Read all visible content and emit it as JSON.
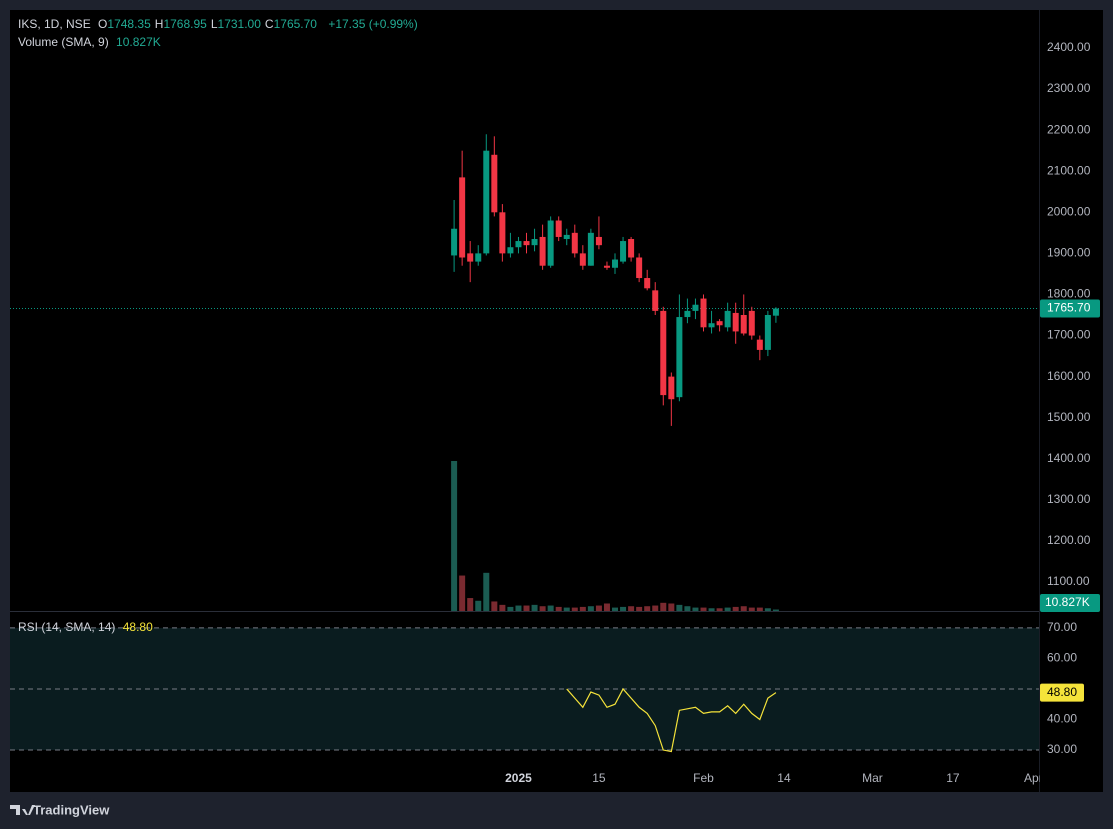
{
  "chart_data": {
    "type": "candlestick",
    "symbol": "IKS, 1D, NSE",
    "ohlc_legend": [
      {
        "label": "O",
        "value": "1748.35"
      },
      {
        "label": "H",
        "value": "1768.95"
      },
      {
        "label": "L",
        "value": "1731.00"
      },
      {
        "label": "C",
        "value": "1765.70"
      }
    ],
    "change": "+17.35 (+0.99%)",
    "colors": {
      "up": "#089981",
      "down": "#f23645",
      "volume_up": "#1b5c52",
      "volume_down": "#7a2a30"
    },
    "candles": [
      [
        1895,
        2030,
        1855,
        1960
      ],
      [
        2085,
        2150,
        1870,
        1890
      ],
      [
        1900,
        1930,
        1830,
        1880
      ],
      [
        1880,
        1920,
        1870,
        1900
      ],
      [
        1900,
        2190,
        1895,
        2150
      ],
      [
        2140,
        2185,
        1990,
        2000
      ],
      [
        2000,
        2020,
        1880,
        1900
      ],
      [
        1900,
        1950,
        1890,
        1915
      ],
      [
        1915,
        1940,
        1900,
        1930
      ],
      [
        1930,
        1950,
        1900,
        1920
      ],
      [
        1920,
        1960,
        1905,
        1935
      ],
      [
        1940,
        1970,
        1860,
        1870
      ],
      [
        1870,
        1990,
        1865,
        1980
      ],
      [
        1980,
        1990,
        1930,
        1940
      ],
      [
        1935,
        1960,
        1920,
        1945
      ],
      [
        1950,
        1970,
        1890,
        1900
      ],
      [
        1900,
        1920,
        1860,
        1870
      ],
      [
        1870,
        1960,
        1870,
        1950
      ],
      [
        1940,
        1990,
        1910,
        1920
      ],
      [
        1870,
        1880,
        1860,
        1865
      ],
      [
        1865,
        1900,
        1850,
        1885
      ],
      [
        1880,
        1940,
        1875,
        1930
      ],
      [
        1935,
        1940,
        1880,
        1890
      ],
      [
        1890,
        1900,
        1830,
        1840
      ],
      [
        1840,
        1860,
        1810,
        1815
      ],
      [
        1810,
        1830,
        1750,
        1760
      ],
      [
        1760,
        1770,
        1530,
        1555
      ],
      [
        1600,
        1610,
        1480,
        1545
      ],
      [
        1550,
        1800,
        1540,
        1745
      ],
      [
        1745,
        1790,
        1730,
        1760
      ],
      [
        1760,
        1790,
        1740,
        1775
      ],
      [
        1790,
        1800,
        1710,
        1720
      ],
      [
        1720,
        1760,
        1705,
        1730
      ],
      [
        1735,
        1740,
        1710,
        1725
      ],
      [
        1720,
        1780,
        1710,
        1760
      ],
      [
        1755,
        1780,
        1680,
        1710
      ],
      [
        1750,
        1800,
        1700,
        1705
      ],
      [
        1760,
        1770,
        1690,
        1700
      ],
      [
        1690,
        1700,
        1640,
        1665
      ],
      [
        1665,
        1760,
        1650,
        1750
      ],
      [
        1748.35,
        1768.95,
        1731,
        1765.7
      ]
    ],
    "ylim": [
      1029.4,
      2492.5
    ],
    "yticks": [
      {
        "value": 2400,
        "label": "2400.00"
      },
      {
        "value": 2300,
        "label": "2300.00"
      },
      {
        "value": 2200,
        "label": "2200.00"
      },
      {
        "value": 2100,
        "label": "2100.00"
      },
      {
        "value": 2000,
        "label": "2000.00"
      },
      {
        "value": 1900,
        "label": "1900.00"
      },
      {
        "value": 1800,
        "label": "1800.00"
      },
      {
        "value": 1700,
        "label": "1700.00"
      },
      {
        "value": 1600,
        "label": "1600.00"
      },
      {
        "value": 1500,
        "label": "1500.00"
      },
      {
        "value": 1400,
        "label": "1400.00"
      },
      {
        "value": 1300,
        "label": "1300.00"
      },
      {
        "value": 1200,
        "label": "1200.00"
      },
      {
        "value": 1100,
        "label": "1100.00"
      }
    ],
    "last_price": {
      "value": 1765.7,
      "label": "1765.70"
    },
    "xlim": [
      -55.2,
      72.7
    ],
    "xticks": [
      {
        "value": 8,
        "label": "2025"
      },
      {
        "value": 18,
        "label": "15"
      },
      {
        "value": 31,
        "label": "Feb"
      },
      {
        "value": 41,
        "label": "14"
      },
      {
        "value": 52,
        "label": "Mar"
      },
      {
        "value": 62,
        "label": "17"
      },
      {
        "value": 72,
        "label": "Apr"
      }
    ],
    "volume": {
      "name": "Volume (SMA, 9)",
      "values": [
        1100,
        260,
        95,
        75,
        280,
        70,
        45,
        30,
        40,
        40,
        45,
        35,
        40,
        30,
        25,
        25,
        30,
        35,
        40,
        55,
        25,
        30,
        35,
        30,
        35,
        40,
        60,
        55,
        45,
        35,
        25,
        25,
        20,
        20,
        25,
        30,
        35,
        25,
        25,
        20,
        10.827
      ],
      "last": {
        "value": 10.827,
        "label": "10.827K"
      }
    },
    "rsi": {
      "name": "RSI (14, SMA, 14)",
      "color": "#f5e33a",
      "values": [
        null,
        null,
        null,
        null,
        null,
        null,
        null,
        null,
        null,
        null,
        null,
        null,
        null,
        null,
        50,
        47,
        44,
        49,
        48,
        44,
        45,
        50,
        47,
        44,
        42,
        38,
        30,
        29.5,
        43,
        43.5,
        44,
        42,
        42.5,
        42.5,
        44.5,
        42,
        45,
        42,
        40,
        47,
        48.8
      ],
      "last": {
        "value": 48.8,
        "label": "48.80"
      },
      "ylim": [
        25.1,
        75.2
      ],
      "yticks": [
        {
          "value": 70,
          "label": "70.00"
        },
        {
          "value": 60,
          "label": "60.00"
        },
        {
          "value": 40,
          "label": "40.00"
        },
        {
          "value": 30,
          "label": "30.00"
        }
      ],
      "bands": [
        70,
        50,
        30
      ]
    },
    "branding": "TradingView"
  }
}
